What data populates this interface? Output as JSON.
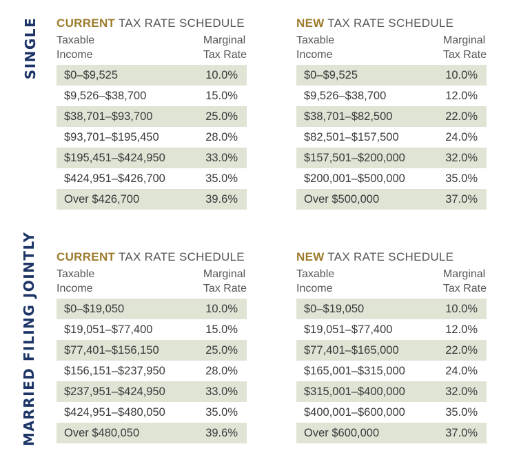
{
  "sections": [
    {
      "label": "SINGLE",
      "schedules": [
        {
          "keyword": "CURRENT",
          "title": "TAX RATE SCHEDULE",
          "col_income": [
            "Taxable",
            "Income"
          ],
          "col_rate": [
            "Marginal",
            "Tax Rate"
          ],
          "rows": [
            {
              "income": "$0–$9,525",
              "rate": "10.0%"
            },
            {
              "income": "$9,526–$38,700",
              "rate": "15.0%"
            },
            {
              "income": "$38,701–$93,700",
              "rate": "25.0%"
            },
            {
              "income": "$93,701–$195,450",
              "rate": "28.0%"
            },
            {
              "income": "$195,451–$424,950",
              "rate": "33.0%"
            },
            {
              "income": "$424,951–$426,700",
              "rate": "35.0%"
            },
            {
              "income": "Over $426,700",
              "rate": "39.6%"
            }
          ]
        },
        {
          "keyword": "NEW",
          "title": "TAX RATE SCHEDULE",
          "col_income": [
            "Taxable",
            "Income"
          ],
          "col_rate": [
            "Marginal",
            "Tax Rate"
          ],
          "rows": [
            {
              "income": "$0–$9,525",
              "rate": "10.0%"
            },
            {
              "income": "$9,526–$38,700",
              "rate": "12.0%"
            },
            {
              "income": "$38,701–$82,500",
              "rate": "22.0%"
            },
            {
              "income": "$82,501–$157,500",
              "rate": "24.0%"
            },
            {
              "income": "$157,501–$200,000",
              "rate": "32.0%"
            },
            {
              "income": "$200,001–$500,000",
              "rate": "35.0%"
            },
            {
              "income": "Over $500,000",
              "rate": "37.0%"
            }
          ]
        }
      ]
    },
    {
      "label": "MARRIED FILING JOINTLY",
      "schedules": [
        {
          "keyword": "CURRENT",
          "title": "TAX RATE SCHEDULE",
          "col_income": [
            "Taxable",
            "Income"
          ],
          "col_rate": [
            "Marginal",
            "Tax Rate"
          ],
          "rows": [
            {
              "income": "$0–$19,050",
              "rate": "10.0%"
            },
            {
              "income": "$19,051–$77,400",
              "rate": "15.0%"
            },
            {
              "income": "$77,401–$156,150",
              "rate": "25.0%"
            },
            {
              "income": "$156,151–$237,950",
              "rate": "28.0%"
            },
            {
              "income": "$237,951–$424,950",
              "rate": "33.0%"
            },
            {
              "income": "$424,951–$480,050",
              "rate": "35.0%"
            },
            {
              "income": "Over $480,050",
              "rate": "39.6%"
            }
          ]
        },
        {
          "keyword": "NEW",
          "title": "TAX RATE SCHEDULE",
          "col_income": [
            "Taxable",
            "Income"
          ],
          "col_rate": [
            "Marginal",
            "Tax Rate"
          ],
          "rows": [
            {
              "income": "$0–$19,050",
              "rate": "10.0%"
            },
            {
              "income": "$19,051–$77,400",
              "rate": "12.0%"
            },
            {
              "income": "$77,401–$165,000",
              "rate": "22.0%"
            },
            {
              "income": "$165,001–$315,000",
              "rate": "24.0%"
            },
            {
              "income": "$315,001–$400,000",
              "rate": "32.0%"
            },
            {
              "income": "$400,001–$600,000",
              "rate": "35.0%"
            },
            {
              "income": "Over $600,000",
              "rate": "37.0%"
            }
          ]
        }
      ]
    }
  ],
  "colors": {
    "keyword": "#9c7b2c",
    "side_label": "#1c3566",
    "row_shade": "#dfe4d5"
  }
}
